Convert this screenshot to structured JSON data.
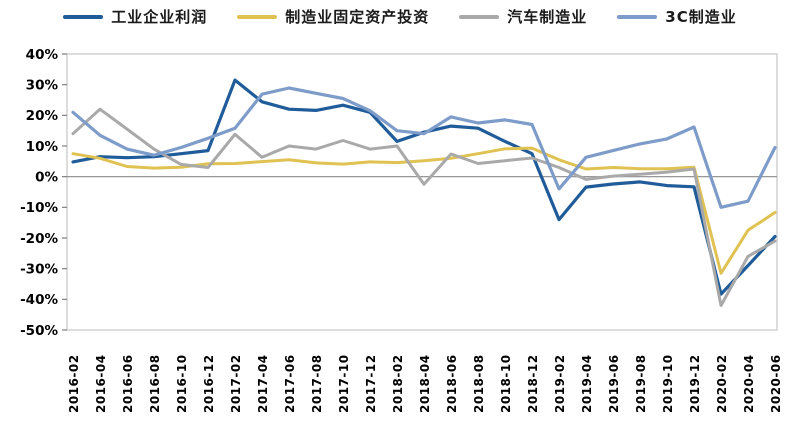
{
  "legend": {
    "items": [
      {
        "label": "工业企业利润",
        "color": "#1f5c99"
      },
      {
        "label": "制造业固定资产投资",
        "color": "#e0c253"
      },
      {
        "label": "汽车制造业",
        "color": "#a9a9a9"
      },
      {
        "label": "3C制造业",
        "color": "#7e9cc9"
      }
    ]
  },
  "chart_data": {
    "type": "line",
    "title": "",
    "xlabel": "",
    "ylabel": "",
    "ylim": [
      -50,
      40
    ],
    "grid": "zero-line-only",
    "legend_position": "top",
    "y_tick_labels": [
      "40%",
      "30%",
      "20%",
      "10%",
      "0%",
      "-10%",
      "-20%",
      "-30%",
      "-40%",
      "-50%"
    ],
    "y_tick_values": [
      40,
      30,
      20,
      10,
      0,
      -10,
      -20,
      -30,
      -40,
      -50
    ],
    "x": [
      "2016-02",
      "2016-04",
      "2016-06",
      "2016-08",
      "2016-10",
      "2016-12",
      "2017-02",
      "2017-04",
      "2017-06",
      "2017-08",
      "2017-10",
      "2017-12",
      "2018-02",
      "2018-04",
      "2018-06",
      "2018-08",
      "2018-10",
      "2018-12",
      "2019-02",
      "2019-04",
      "2019-06",
      "2019-08",
      "2019-10",
      "2019-12",
      "2020-02",
      "2020-04",
      "2020-06"
    ],
    "series": [
      {
        "name": "工业企业利润",
        "color": "#1f5c99",
        "width": 3.2,
        "values": [
          4.8,
          6.5,
          6.2,
          6.5,
          7.5,
          8.5,
          31.5,
          24.4,
          22.0,
          21.6,
          23.3,
          21.0,
          11.5,
          14.5,
          16.5,
          15.8,
          11.5,
          7.5,
          -14.0,
          -3.4,
          -2.4,
          -1.7,
          -2.9,
          -3.3,
          -38.3,
          -29.0,
          -19.5
        ]
      },
      {
        "name": "制造业固定资产投资",
        "color": "#e0c253",
        "width": 3.0,
        "values": [
          7.5,
          6.0,
          3.3,
          2.8,
          3.1,
          4.2,
          4.3,
          4.9,
          5.5,
          4.5,
          4.1,
          4.8,
          4.6,
          5.2,
          6.0,
          7.5,
          9.1,
          9.3,
          5.5,
          2.5,
          3.0,
          2.6,
          2.6,
          3.1,
          -31.5,
          -17.5,
          -11.7
        ]
      },
      {
        "name": "汽车制造业",
        "color": "#a9a9a9",
        "width": 3.0,
        "values": [
          14.0,
          22.0,
          15.5,
          9.0,
          4.0,
          3.0,
          13.8,
          6.3,
          10.0,
          9.0,
          11.8,
          9.0,
          10.0,
          -2.5,
          7.4,
          4.3,
          5.2,
          6.1,
          3.0,
          -0.9,
          0.2,
          0.8,
          1.5,
          2.5,
          -42.0,
          -26.0,
          -21.0
        ]
      },
      {
        "name": "3C制造业",
        "color": "#7e9cc9",
        "width": 3.2,
        "values": [
          21.0,
          13.5,
          9.0,
          7.0,
          9.5,
          12.5,
          15.8,
          26.9,
          28.9,
          27.2,
          25.5,
          21.5,
          15.0,
          14.0,
          19.5,
          17.5,
          18.5,
          17.0,
          -4.0,
          6.3,
          8.5,
          10.7,
          12.3,
          16.2,
          -10.0,
          -8.0,
          9.5
        ]
      }
    ],
    "colors": {
      "plot_border": "#c6c6c6",
      "zero_line": "#8a8a8a",
      "tick_mark": "#7f7f7f",
      "background": "#ffffff"
    }
  }
}
